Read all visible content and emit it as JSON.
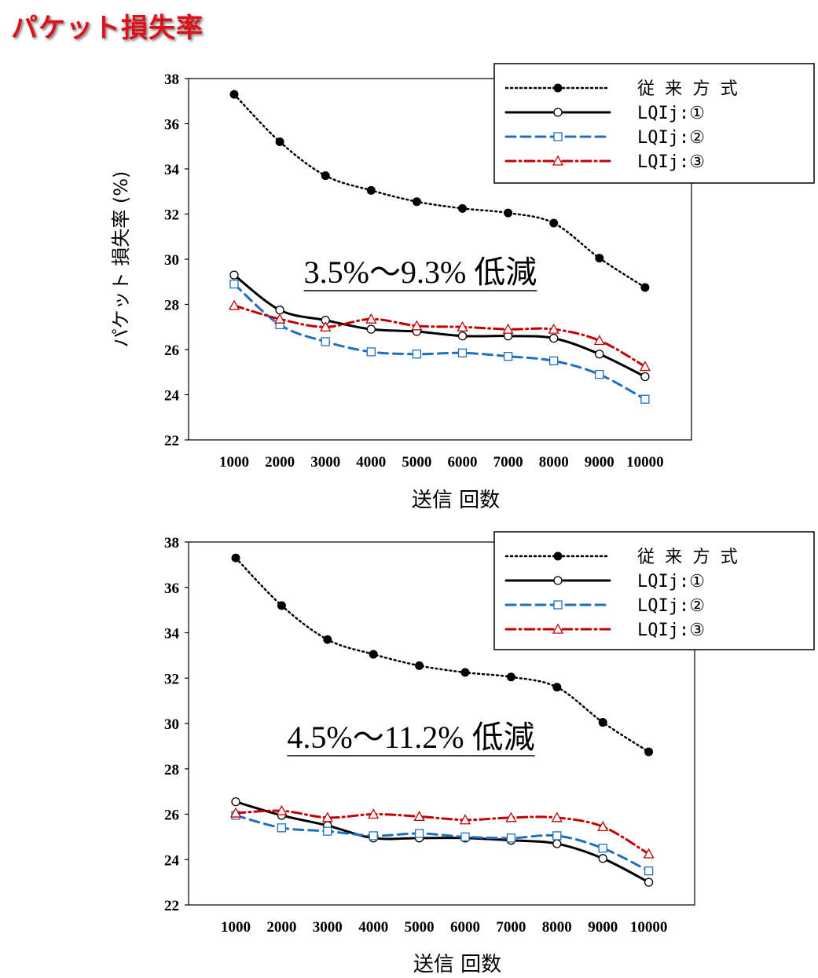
{
  "page": {
    "title": "パケット損失率"
  },
  "colors": {
    "title": "#e0101a",
    "conventional": "#000000",
    "lqi1": "#000000",
    "lqi2": "#1f6fc0",
    "lqi3": "#c00000"
  },
  "chart_data": [
    {
      "type": "line",
      "categories": [
        "1000",
        "2000",
        "3000",
        "4000",
        "5000",
        "6000",
        "7000",
        "8000",
        "9000",
        "10000"
      ],
      "xlabel": "送信 回数",
      "ylabel": "パケット 損失率 (%)",
      "ylim": [
        22,
        38
      ],
      "yticks": [
        22,
        24,
        26,
        28,
        30,
        32,
        34,
        36,
        38
      ],
      "grid": false,
      "legend_position": "top-right",
      "annotation": "3.5%～9.3% 低減",
      "series": [
        {
          "name": "従 来 方 式",
          "style": "dotted",
          "marker": "filled-circle",
          "color": "#000000",
          "values": [
            37.3,
            35.2,
            33.7,
            33.05,
            32.55,
            32.25,
            32.05,
            31.6,
            30.05,
            28.75
          ]
        },
        {
          "name": "LQIj:①",
          "style": "solid",
          "marker": "open-circle",
          "color": "#000000",
          "values": [
            29.3,
            27.75,
            27.3,
            26.9,
            26.8,
            26.6,
            26.6,
            26.5,
            25.8,
            24.8
          ]
        },
        {
          "name": "LQIj:②",
          "style": "dashed",
          "marker": "open-square",
          "color": "#1f6fc0",
          "values": [
            28.9,
            27.1,
            26.35,
            25.9,
            25.8,
            25.85,
            25.7,
            25.5,
            24.9,
            23.8
          ]
        },
        {
          "name": "LQIj:③",
          "style": "dashdot",
          "marker": "open-triangle",
          "color": "#c00000",
          "values": [
            27.95,
            27.35,
            27.0,
            27.35,
            27.05,
            27.0,
            26.9,
            26.9,
            26.4,
            25.25
          ]
        }
      ]
    },
    {
      "type": "line",
      "categories": [
        "1000",
        "2000",
        "3000",
        "4000",
        "5000",
        "6000",
        "7000",
        "8000",
        "9000",
        "10000"
      ],
      "xlabel": "送信 回数",
      "ylabel": "",
      "ylim": [
        22,
        38
      ],
      "yticks": [
        22,
        24,
        26,
        28,
        30,
        32,
        34,
        36,
        38
      ],
      "grid": false,
      "legend_position": "top-right",
      "annotation": "4.5%～11.2% 低減",
      "series": [
        {
          "name": "従 来 方 式",
          "style": "dotted",
          "marker": "filled-circle",
          "color": "#000000",
          "values": [
            37.3,
            35.2,
            33.7,
            33.05,
            32.55,
            32.25,
            32.05,
            31.6,
            30.05,
            28.75
          ]
        },
        {
          "name": "LQIj:①",
          "style": "solid",
          "marker": "open-circle",
          "color": "#000000",
          "values": [
            26.55,
            25.95,
            25.5,
            24.95,
            24.95,
            24.95,
            24.85,
            24.7,
            24.05,
            23.0
          ]
        },
        {
          "name": "LQIj:②",
          "style": "dashed",
          "marker": "open-square",
          "color": "#1f6fc0",
          "values": [
            25.95,
            25.4,
            25.25,
            25.05,
            25.15,
            25.0,
            24.95,
            25.05,
            24.5,
            23.5
          ]
        },
        {
          "name": "LQIj:③",
          "style": "dashdot",
          "marker": "open-triangle",
          "color": "#c00000",
          "values": [
            26.05,
            26.15,
            25.85,
            26.0,
            25.9,
            25.75,
            25.85,
            25.85,
            25.45,
            24.25
          ]
        }
      ]
    }
  ]
}
